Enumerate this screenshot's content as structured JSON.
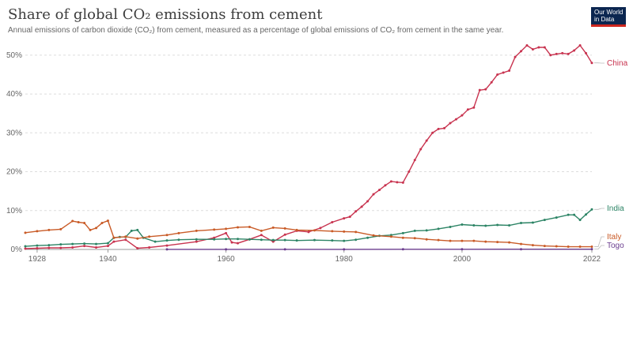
{
  "title": "Share of global CO₂ emissions from cement",
  "subtitle": "Annual emissions of carbon dioxide (CO₂) from cement, measured as a percentage of global emissions of CO₂ from cement in the same year.",
  "logo": {
    "line1": "Our World",
    "line2": "in Data"
  },
  "chart_data": {
    "type": "line",
    "xlim": [
      1926,
      2022
    ],
    "ylim": [
      0,
      52
    ],
    "x_ticks": [
      1928,
      1940,
      1960,
      1980,
      2000,
      2022
    ],
    "y_ticks": [
      0,
      10,
      20,
      30,
      40,
      50
    ],
    "y_tick_labels": [
      "0%",
      "10%",
      "20%",
      "30%",
      "40%",
      "50%"
    ],
    "grid": "horizontal dashed",
    "series": [
      {
        "name": "China",
        "color": "#c8334f",
        "x": [
          1926,
          1928,
          1930,
          1932,
          1934,
          1936,
          1938,
          1940,
          1941,
          1943,
          1945,
          1947,
          1950,
          1955,
          1958,
          1960,
          1961,
          1962,
          1964,
          1966,
          1968,
          1970,
          1972,
          1974,
          1976,
          1978,
          1980,
          1981,
          1982,
          1983,
          1984,
          1985,
          1986,
          1987,
          1988,
          1989,
          1990,
          1991,
          1992,
          1993,
          1994,
          1995,
          1996,
          1997,
          1998,
          1999,
          2000,
          2001,
          2002,
          2003,
          2004,
          2005,
          2006,
          2007,
          2008,
          2009,
          2010,
          2011,
          2012,
          2013,
          2014,
          2015,
          2016,
          2017,
          2018,
          2019,
          2020,
          2021,
          2022
        ],
        "values": [
          0.2,
          0.3,
          0.4,
          0.4,
          0.5,
          0.9,
          0.5,
          0.9,
          2.0,
          2.5,
          0.3,
          0.5,
          1.0,
          2.0,
          3.0,
          4.2,
          1.8,
          1.6,
          2.6,
          3.7,
          2.0,
          3.8,
          4.8,
          4.5,
          5.5,
          7.0,
          8.0,
          8.4,
          9.8,
          11.0,
          12.4,
          14.2,
          15.3,
          16.5,
          17.5,
          17.3,
          17.2,
          20.0,
          23.0,
          25.8,
          28.0,
          30.0,
          31.0,
          31.2,
          32.5,
          33.5,
          34.5,
          36.0,
          36.5,
          41.0,
          41.2,
          43.0,
          45.0,
          45.5,
          46.0,
          49.5,
          51.0,
          52.5,
          51.5,
          52.0,
          52.0,
          50.0,
          50.3,
          50.5,
          50.3,
          51.2,
          52.5,
          50.5,
          48.0
        ]
      },
      {
        "name": "India",
        "color": "#2c8465",
        "x": [
          1926,
          1928,
          1930,
          1932,
          1934,
          1936,
          1938,
          1940,
          1941,
          1942,
          1943,
          1944,
          1945,
          1946,
          1948,
          1950,
          1952,
          1955,
          1958,
          1960,
          1962,
          1964,
          1966,
          1968,
          1970,
          1972,
          1975,
          1978,
          1980,
          1982,
          1984,
          1986,
          1988,
          1990,
          1992,
          1994,
          1996,
          1998,
          2000,
          2002,
          2004,
          2006,
          2008,
          2010,
          2012,
          2014,
          2016,
          2018,
          2019,
          2020,
          2021,
          2022
        ],
        "values": [
          0.8,
          1.0,
          1.1,
          1.3,
          1.4,
          1.5,
          1.4,
          1.6,
          3.0,
          3.2,
          3.2,
          4.8,
          5.0,
          3.0,
          2.0,
          2.3,
          2.5,
          2.6,
          2.6,
          2.7,
          2.7,
          2.6,
          2.5,
          2.4,
          2.4,
          2.3,
          2.4,
          2.3,
          2.2,
          2.5,
          3.0,
          3.5,
          3.7,
          4.2,
          4.8,
          4.9,
          5.3,
          5.8,
          6.4,
          6.2,
          6.1,
          6.3,
          6.2,
          6.8,
          6.9,
          7.6,
          8.2,
          8.9,
          8.9,
          7.6,
          9.0,
          10.3
        ]
      },
      {
        "name": "Italy",
        "color": "#c95b27",
        "x": [
          1926,
          1928,
          1930,
          1932,
          1934,
          1935,
          1936,
          1937,
          1938,
          1939,
          1940,
          1941,
          1943,
          1945,
          1947,
          1950,
          1952,
          1955,
          1958,
          1960,
          1962,
          1964,
          1966,
          1968,
          1970,
          1972,
          1975,
          1978,
          1980,
          1982,
          1985,
          1988,
          1990,
          1992,
          1994,
          1996,
          1998,
          2000,
          2002,
          2004,
          2006,
          2008,
          2010,
          2012,
          2014,
          2016,
          2018,
          2020,
          2022
        ],
        "values": [
          4.3,
          4.7,
          5.0,
          5.2,
          7.3,
          7.0,
          6.8,
          5.0,
          5.5,
          6.8,
          7.4,
          3.0,
          3.3,
          2.8,
          3.3,
          3.7,
          4.2,
          4.8,
          5.1,
          5.3,
          5.7,
          5.8,
          4.8,
          5.6,
          5.4,
          5.0,
          4.9,
          4.7,
          4.6,
          4.5,
          3.6,
          3.3,
          3.0,
          2.9,
          2.6,
          2.4,
          2.2,
          2.2,
          2.2,
          2.0,
          1.9,
          1.8,
          1.4,
          1.1,
          0.9,
          0.8,
          0.7,
          0.7,
          0.7
        ]
      },
      {
        "name": "Togo",
        "color": "#6b3d8e",
        "x": [
          1950,
          1960,
          1970,
          1980,
          1990,
          2000,
          2010,
          2022
        ],
        "values": [
          0.02,
          0.02,
          0.02,
          0.03,
          0.04,
          0.05,
          0.06,
          0.07
        ]
      }
    ]
  }
}
